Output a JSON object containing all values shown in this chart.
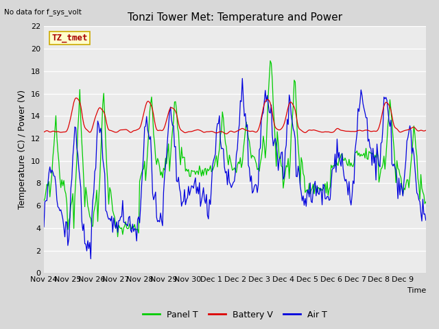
{
  "title": "Tonzi Tower Met: Temperature and Power",
  "top_left_text": "No data for f_sys_volt",
  "ylabel": "Temperature (C) / Power (V)",
  "xlabel": "Time",
  "ylim": [
    0,
    22
  ],
  "yticks": [
    0,
    2,
    4,
    6,
    8,
    10,
    12,
    14,
    16,
    18,
    20,
    22
  ],
  "xtick_labels": [
    "Nov 24",
    "Nov 25",
    "Nov 26",
    "Nov 27",
    "Nov 28",
    "Nov 29",
    "Nov 30",
    "Dec 1",
    "Dec 2",
    "Dec 3",
    "Dec 4",
    "Dec 5",
    "Dec 6",
    "Dec 7",
    "Dec 8",
    "Dec 9"
  ],
  "fig_facecolor": "#d8d8d8",
  "plot_facecolor": "#ebebeb",
  "grid_color": "#ffffff",
  "legend_items": [
    {
      "label": "Panel T",
      "color": "#00cc00"
    },
    {
      "label": "Battery V",
      "color": "#dd0000"
    },
    {
      "label": "Air T",
      "color": "#0000dd"
    }
  ],
  "annotation": {
    "text": "TZ_tmet",
    "facecolor": "#ffffcc",
    "edgecolor": "#ccaa00",
    "text_color": "#aa0000",
    "fontsize": 9
  },
  "title_fontsize": 11,
  "axis_fontsize": 8,
  "ylabel_fontsize": 9
}
